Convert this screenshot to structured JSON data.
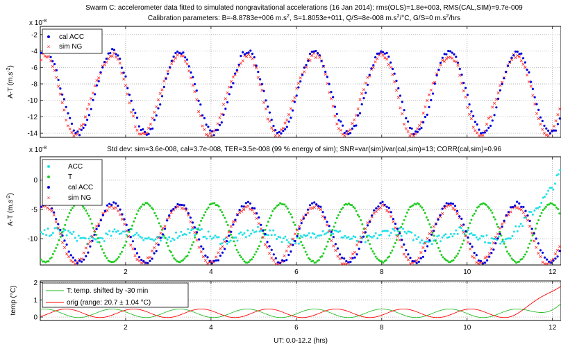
{
  "figure": {
    "title_line1": "Swarm C: accelerometer data fitted to simulated nongravitational accelerations (16 Jan 2014): rms(OLS)=1.8e+003, RMS(CAL,SIM)=9.7e-009",
    "title_line2_a": "Calibration parameters: B=-8.8783e+006 m.s",
    "title_line2_b": ", S=1.8053e+011, Q/S=8e-008 m.s",
    "title_line2_c": "/°C, G/S=0 m.s",
    "title_line2_d": "/hrs",
    "xlabel": "UT: 0.0-12.2 (hrs)"
  },
  "colors": {
    "cal_acc": "#0000dd",
    "sim_ng": "#ff2020",
    "acc": "#22e0e8",
    "t": "#22cc22",
    "temp_shifted": "#22bb22",
    "temp_orig": "#ff0000",
    "grid": "#9a9a9a"
  },
  "chart_data": [
    {
      "type": "scatter",
      "panel": "top",
      "title": "",
      "ylabel": "A-T (m.s-2)",
      "y_exponent": "x 10^-8",
      "xlim": [
        0,
        12.2
      ],
      "ylim": [
        -14.5,
        -1
      ],
      "yticks": [
        -2,
        -4,
        -6,
        -8,
        -10,
        -12,
        -14
      ],
      "legend": "top-left",
      "grid": true,
      "series": [
        {
          "name": "cal ACC",
          "marker": "dot",
          "period_hr": 1.58,
          "phase_hr": 0.9,
          "mean": -9.0,
          "amplitude": 5.0
        },
        {
          "name": "sim NG",
          "marker": "x",
          "period_hr": 1.58,
          "phase_hr": 0.85,
          "mean": -9.0,
          "amplitude": 5.0
        }
      ]
    },
    {
      "type": "scatter",
      "panel": "middle",
      "title": "Std dev: sim=3.6e-008, cal=3.7e-008, TER=3.5e-008 (99 % energy of sim); SNR=var(sim)/var(cal,sim)=13; CORR(cal,sim)=0.96",
      "ylabel": "A-T (m.s-2)",
      "y_exponent": "x 10^-8",
      "xlim": [
        0,
        12.2
      ],
      "ylim": [
        -14.5,
        4
      ],
      "yticks": [
        0,
        -5,
        -10
      ],
      "xticks": [
        2,
        4,
        6,
        8,
        10,
        12
      ],
      "legend": "top-left",
      "grid": true,
      "series": [
        {
          "name": "ACC",
          "marker": "dot",
          "mean": -9.5,
          "amplitude": 1.0
        },
        {
          "name": "T",
          "marker": "dot",
          "mean": -9.0,
          "amplitude": 5.0
        },
        {
          "name": "cal ACC",
          "marker": "dot",
          "mean": -9.0,
          "amplitude": 5.0
        },
        {
          "name": "sim NG",
          "marker": "x",
          "mean": -9.0,
          "amplitude": 5.0
        }
      ]
    },
    {
      "type": "line",
      "panel": "bottom",
      "ylabel": "temp (°C)",
      "xlabel": "UT: 0.0-12.2 (hrs)",
      "xlim": [
        0,
        12.2
      ],
      "ylim": [
        -0.2,
        2.1
      ],
      "yticks": [
        0,
        1,
        2
      ],
      "xticks": [
        2,
        4,
        6,
        8,
        10,
        12
      ],
      "legend": "top-left",
      "grid": true,
      "series": [
        {
          "name": "T: temp. shifted by -30 min",
          "mean": 0.22,
          "amplitude": 0.25
        },
        {
          "name": "orig (range: 20.7 ± 1.04 °C)",
          "mean": 0.22,
          "amplitude": 0.25
        }
      ]
    }
  ]
}
